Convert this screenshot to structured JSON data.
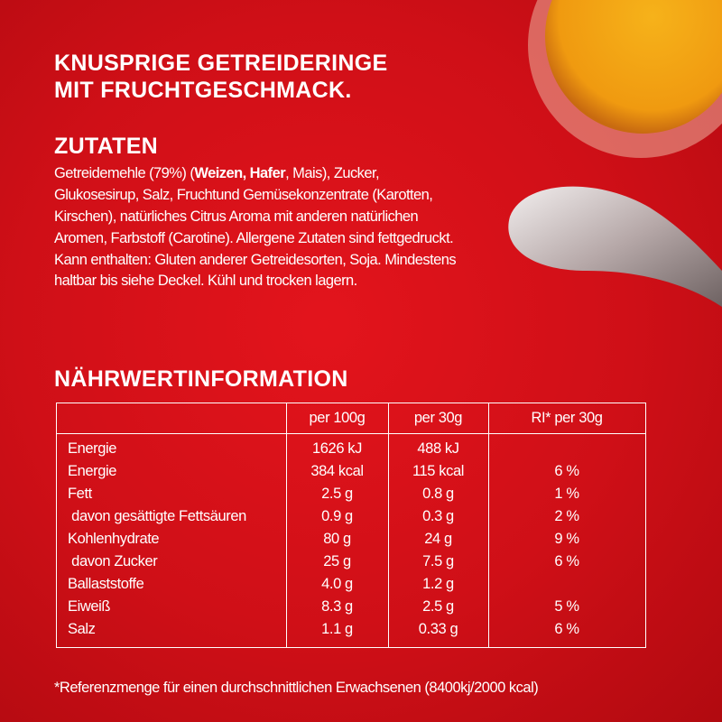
{
  "header": {
    "title_lines": [
      "KNUSPRIGE GETREIDERINGE",
      "MIT FRUCHTGESCHMACK."
    ]
  },
  "ingredients": {
    "heading": "ZUTATEN",
    "lines": [
      [
        "Getreidemehle (79%) (",
        "Weizen, Hafer",
        ", Mais), Zucker,"
      ],
      [
        "Glukosesirup, Salz, Fruchtund Gemüsekonzentrate (Karotten,"
      ],
      [
        "Kirschen), natürliches Citrus Aroma mit anderen natürlichen"
      ],
      [
        "Aromen, Farbstoff (Carotine). Allergene Zutaten sind fettgedruckt."
      ],
      [
        "Kann enthalten: Gluten anderer Getreidesorten, Soja. Mindestens"
      ],
      [
        "haltbar bis siehe Deckel. Kühl und trocken lagern."
      ]
    ]
  },
  "nutrition": {
    "heading": "NÄHRWERTINFORMATION",
    "table": {
      "columns": [
        "per 100g",
        "per 30g",
        "RI* per 30g"
      ],
      "rows": [
        [
          "Energie",
          "1626 kJ",
          "488 kJ"
        ],
        [
          "Energie",
          "384 kcal",
          "115 kcal",
          "6 %"
        ],
        [
          "Fett",
          "2.5 g",
          "0.8 g",
          "1 %"
        ],
        [
          " davon gesättigte Fettsäuren",
          "0.9 g",
          "0.3 g",
          "2 %"
        ],
        [
          "Kohlenhydrate",
          "80 g",
          "24 g",
          "9 %"
        ],
        [
          " davon Zucker",
          "25 g",
          "7.5 g",
          "6 %"
        ],
        [
          "Ballaststoffe",
          "4.0 g",
          "1.2 g"
        ],
        [
          "Eiweiß",
          "8.3 g",
          "2.5 g",
          "5 %"
        ],
        [
          "Salz",
          "1.1 g",
          "0.33 g",
          "6 %"
        ]
      ]
    },
    "footnote": "*Referenzmenge für einen durchschnittlichen Erwachsenen (8400kj/2000 kcal)"
  }
}
